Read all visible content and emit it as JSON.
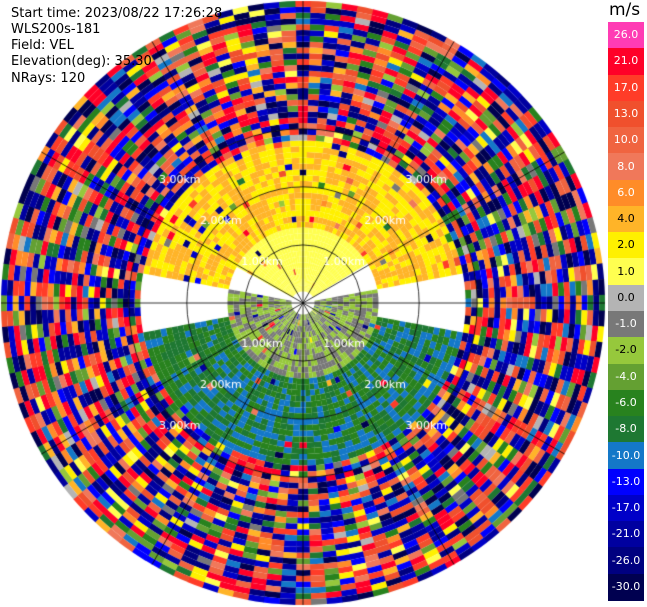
{
  "header": {
    "start_time": "Start time: 2023/08/22 17:26:28",
    "instrument": "WLS200s-181",
    "field": "Field: VEL",
    "elevation": "Elevation(deg): 35.30",
    "nrays": "NRays: 120"
  },
  "colorbar": {
    "unit": "m/s",
    "ticks": [
      "26.0",
      "21.0",
      "17.0",
      "13.0",
      "10.0",
      "8.0",
      "6.0",
      "4.0",
      "2.0",
      "1.0",
      "0.0",
      "-1.0",
      "-2.0",
      "-4.0",
      "-6.0",
      "-8.0",
      "-10.0",
      "-13.0",
      "-17.0",
      "-21.0",
      "-26.0",
      "-30.0"
    ],
    "colors": [
      "#ff3cb4",
      "#ff0028",
      "#ff3c28",
      "#f0502d",
      "#f06440",
      "#f0785a",
      "#ff8c28",
      "#ffb428",
      "#fff000",
      "#ffff50",
      "#b4b4b4",
      "#787878",
      "#96c83c",
      "#64a032",
      "#28821e",
      "#1e7832",
      "#1478c8",
      "#0000ff",
      "#0000c8",
      "#0000a0",
      "#000080",
      "#000050"
    ]
  },
  "chart_data": {
    "type": "ppi-polar",
    "field": "VEL",
    "unit": "m/s",
    "nrays": 120,
    "range_rings_km": [
      1.0,
      2.0,
      3.0
    ],
    "range_ring_labels": [
      "1.00km",
      "2.00km",
      "3.00km"
    ],
    "max_range_km": 5.2,
    "radial_sectors": [
      {
        "azimuth_range_deg": [
          300,
          60
        ],
        "range_km": [
          0.2,
          1.3
        ],
        "velocity_ms": [
          1.0,
          2.0
        ],
        "label": "near field north: weak positive (yellow)"
      },
      {
        "azimuth_range_deg": [
          280,
          80
        ],
        "range_km": [
          1.3,
          2.8
        ],
        "velocity_ms": [
          2.0,
          6.0
        ],
        "label": "north: positive (yellow/orange)"
      },
      {
        "azimuth_range_deg": [
          80,
          280
        ],
        "range_km": [
          0.2,
          1.3
        ],
        "velocity_ms": [
          -2.0,
          0.0
        ],
        "label": "near field south: weak negative (grey/green)"
      },
      {
        "azimuth_range_deg": [
          100,
          260
        ],
        "range_km": [
          1.3,
          2.8
        ],
        "velocity_ms": [
          -10.0,
          -4.0
        ],
        "label": "south: negative (green/blue)"
      },
      {
        "azimuth_range_deg": [
          0,
          360
        ],
        "range_km": [
          2.8,
          5.2
        ],
        "velocity_ms": [
          -30.0,
          26.0
        ],
        "label": "outer: noise, all values"
      }
    ]
  }
}
